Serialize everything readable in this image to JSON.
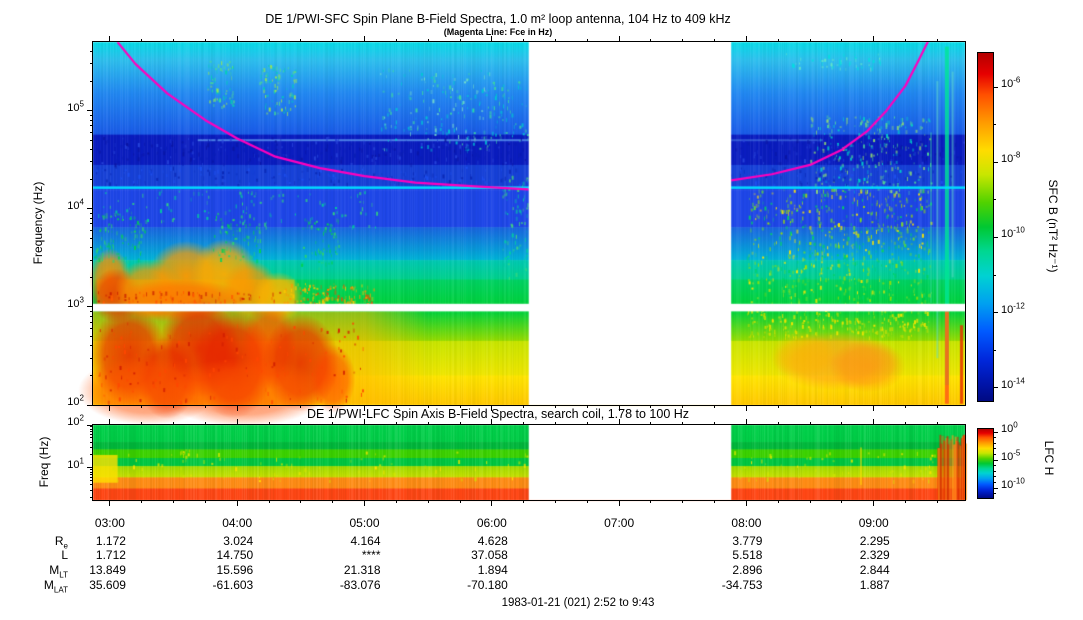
{
  "ui": {
    "title": "DE 1/PWI-SFC  Spin Plane B-Field Spectra, 1.0 m² loop antenna, 104 Hz to 409 kHz",
    "subtitle": "(Magenta Line: Fce in Hz)",
    "lfc_title": "DE 1/PWI-LFC  Spin Axis B-Field Spectra, search coil, 1.78 to 100 Hz",
    "caption": "1983-01-21 (021) 2:52 to 9:43",
    "sfc_ylabel": "Frequency (Hz)",
    "lfc_ylabel": "Freq (Hz)",
    "sfc_cb_label": "SFC B (nT² Hz⁻¹)",
    "lfc_cb_label": "LFC H"
  },
  "ephemeris": {
    "row_labels": [
      [
        "R",
        "e"
      ],
      [
        "L",
        ""
      ],
      [
        "M",
        "LT"
      ],
      [
        "M",
        "LAT"
      ]
    ],
    "hours": [
      "03:00",
      "04:00",
      "05:00",
      "06:00",
      "07:00",
      "08:00",
      "09:00"
    ],
    "rows": [
      [
        "1.172",
        "3.024",
        "4.164",
        "4.628",
        "",
        "3.779",
        "2.295"
      ],
      [
        "1.712",
        "14.750",
        "****",
        "37.058",
        "",
        "5.518",
        "2.329"
      ],
      [
        "13.849",
        "15.596",
        "21.318",
        "1.894",
        "",
        "2.896",
        "2.844"
      ],
      [
        "35.609",
        "-61.603",
        "-83.076",
        "-70.180",
        "",
        "-34.753",
        "1.887"
      ]
    ]
  },
  "chart_data": {
    "type": "heatmap",
    "x_axis": {
      "start_h": 2.867,
      "end_h": 9.717,
      "gap_h": [
        6.29,
        7.88
      ],
      "minor_step_h": 0.25
    },
    "rainbow": [
      [
        0,
        "#b40000"
      ],
      [
        0.06,
        "#e60000"
      ],
      [
        0.12,
        "#ff5000"
      ],
      [
        0.2,
        "#ff9b00"
      ],
      [
        0.28,
        "#ffdc00"
      ],
      [
        0.35,
        "#c8e600"
      ],
      [
        0.43,
        "#50d200"
      ],
      [
        0.5,
        "#00c832"
      ],
      [
        0.57,
        "#00d791"
      ],
      [
        0.64,
        "#00d2d2"
      ],
      [
        0.72,
        "#00a0f0"
      ],
      [
        0.8,
        "#005aff"
      ],
      [
        0.88,
        "#0028dc"
      ],
      [
        0.95,
        "#0014aa"
      ],
      [
        1,
        "#000a82"
      ]
    ],
    "sfc": {
      "ylog_range": [
        2,
        5.7
      ],
      "ytick_exponents": [
        5,
        4,
        3,
        2
      ],
      "colorbar": {
        "tick_exponents": [
          -6,
          -8,
          -10,
          -12,
          -14
        ],
        "minor_exponents": [
          -7,
          -9,
          -11,
          -13
        ]
      },
      "bands": [
        [
          500000,
          330000,
          "#06dce8",
          "#2ec0ee"
        ],
        [
          330000,
          150000,
          "#2ec0ee",
          "#2288f2"
        ],
        [
          150000,
          57000,
          "#2288f2",
          "#1a5ae8"
        ],
        [
          57000,
          28000,
          "#0a1cc0",
          "#0a1cc0"
        ],
        [
          28000,
          17000,
          "#1640d8",
          "#1640d8"
        ],
        [
          17000,
          15500,
          "#1e46e8",
          "#1e46e8"
        ],
        [
          15500,
          6500,
          "#1e46e8",
          "#1e46e8"
        ],
        [
          6500,
          3000,
          "#1a64e0",
          "#00b4d8"
        ],
        [
          3000,
          1900,
          "#00c8b4",
          "#00d28c"
        ],
        [
          1900,
          1060,
          "#00d264",
          "#00d23c"
        ],
        [
          1060,
          900,
          "#00d23c",
          "#00d23c"
        ],
        [
          900,
          450,
          "#00d23c",
          "#96dc00"
        ],
        [
          450,
          200,
          "#c8e600",
          "#f0e600"
        ],
        [
          200,
          100,
          "#ffe600",
          "#ffc800"
        ]
      ],
      "white_band_hz": [
        900,
        1075
      ],
      "cyan_line": {
        "f": 16500,
        "color": "#00dcff"
      },
      "pale_lines": [
        {
          "f": 50000,
          "t": [
            3.69,
            6.29
          ],
          "color": "#5a96f0",
          "alpha": 0.8
        },
        {
          "f": 50000,
          "t": [
            7.88,
            8.6
          ],
          "color": "#5a96f0",
          "alpha": 0.45
        }
      ],
      "washes": [
        [
          2.9,
          4.45,
          1050,
          1900,
          "#ffc800",
          0.5,
          null
        ],
        [
          2.867,
          5.5,
          103,
          900,
          "#ffb400",
          0.55,
          5.0
        ]
      ],
      "blobs": [
        [
          3.0,
          1900,
          0.16,
          0.32,
          "#ff8c00",
          0.95
        ],
        [
          3.05,
          1300,
          0.2,
          0.28,
          "#e63c00",
          0.8
        ],
        [
          3.3,
          1500,
          0.26,
          0.3,
          "#ff9600",
          0.9
        ],
        [
          3.6,
          2050,
          0.3,
          0.36,
          "#ff9600",
          0.95
        ],
        [
          3.9,
          2150,
          0.26,
          0.36,
          "#ffaa00",
          0.95
        ],
        [
          4.1,
          1500,
          0.22,
          0.3,
          "#ff9600",
          0.9
        ],
        [
          4.32,
          1250,
          0.2,
          0.26,
          "#ffb400",
          0.85
        ],
        [
          3.55,
          1150,
          0.55,
          0.22,
          "#ff7800",
          0.9
        ],
        [
          3.15,
          320,
          0.3,
          0.5,
          "#e62800",
          0.85
        ],
        [
          3.45,
          190,
          0.24,
          0.42,
          "#e62800",
          0.8
        ],
        [
          3.7,
          380,
          0.32,
          0.5,
          "#e61e00",
          0.85
        ],
        [
          3.97,
          260,
          0.32,
          0.55,
          "#e61e00",
          0.9
        ],
        [
          4.25,
          400,
          0.22,
          0.45,
          "#ff3c00",
          0.7
        ],
        [
          4.5,
          270,
          0.3,
          0.5,
          "#e62800",
          0.85
        ],
        [
          4.75,
          185,
          0.18,
          0.35,
          "#ff3c00",
          0.65
        ],
        [
          3.3,
          140,
          0.55,
          0.35,
          "#ff5000",
          0.65
        ],
        [
          4.05,
          135,
          0.65,
          0.35,
          "#ff5000",
          0.65
        ],
        [
          8.7,
          280,
          0.5,
          0.3,
          "#ff9b1e",
          0.7
        ],
        [
          8.45,
          320,
          0.26,
          0.24,
          "#ffb400",
          0.55
        ],
        [
          8.95,
          250,
          0.3,
          0.27,
          "#ff8c14",
          0.6
        ]
      ],
      "speckles": [
        [
          3.76,
          3.97,
          110000,
          330000,
          70,
          [
            "#00d2b4",
            "#50e08c",
            "#9be650"
          ]
        ],
        [
          4.17,
          4.46,
          95000,
          300000,
          80,
          [
            "#00d2b4",
            "#50e08c",
            "#9be650"
          ]
        ],
        [
          5.12,
          5.98,
          40000,
          280000,
          170,
          [
            "#00c8d2",
            "#3cd8a0",
            "#78e0c8"
          ]
        ],
        [
          5.98,
          6.28,
          50000,
          200000,
          60,
          [
            "#00c8d2",
            "#3cd8a0"
          ]
        ],
        [
          6.08,
          6.28,
          2000,
          22000,
          70,
          [
            "#00d2a0",
            "#46dc78"
          ]
        ],
        [
          2.9,
          5.15,
          6500,
          15500,
          110,
          [
            "#00d29b",
            "#32dc78"
          ]
        ],
        [
          2.87,
          3.28,
          3000,
          9500,
          90,
          [
            "#2cd26e",
            "#00d250"
          ]
        ],
        [
          3.8,
          4.18,
          3000,
          9500,
          70,
          [
            "#2cd26e",
            "#00d250"
          ]
        ],
        [
          4.5,
          4.8,
          2500,
          8000,
          60,
          [
            "#2cd26e",
            "#00d250"
          ]
        ],
        [
          8.0,
          9.45,
          1100,
          16000,
          650,
          [
            "#64dc32",
            "#a0e000",
            "#ffe600",
            "#00d264"
          ]
        ],
        [
          8.5,
          9.45,
          15000,
          90000,
          260,
          [
            "#00d2c8",
            "#50dc96",
            "#96e06e"
          ]
        ],
        [
          8.3,
          9.05,
          270000,
          390000,
          50,
          [
            "#00e0e0",
            "#64e6c8"
          ]
        ],
        [
          4.35,
          5.08,
          1050,
          1750,
          140,
          [
            "#ff9600",
            "#ffc800",
            "#e65000"
          ]
        ],
        [
          2.9,
          4.35,
          1080,
          1450,
          90,
          [
            "#c81e00",
            "#ff5a00"
          ]
        ],
        [
          2.9,
          5.0,
          110,
          700,
          150,
          [
            "#d21e00",
            "#ff4600"
          ]
        ],
        [
          8.0,
          9.45,
          500,
          950,
          220,
          [
            "#c8dc00",
            "#ffe600"
          ]
        ],
        [
          2.87,
          9.71,
          29000,
          55000,
          500,
          [
            "#0a14a0",
            "#2846dc",
            "#0a1eb4"
          ]
        ],
        [
          2.87,
          9.71,
          17500,
          27000,
          300,
          [
            "#1e50f0",
            "#0a28b4"
          ]
        ]
      ],
      "vlines": [
        [
          9.575,
          4,
          160,
          450000,
          "#00e696",
          0.8
        ],
        [
          9.5,
          2,
          300,
          200000,
          "#64dcc8",
          0.5
        ],
        [
          9.62,
          2,
          2000,
          250000,
          "#64dcc8",
          0.5
        ],
        [
          9.45,
          2,
          1100,
          60000,
          "#3cd8a0",
          0.4
        ],
        [
          9.575,
          4,
          103,
          900,
          "#ff6414",
          0.9
        ],
        [
          9.69,
          3,
          103,
          650,
          "#e63200",
          0.85
        ]
      ],
      "fce_color": "#ff00be",
      "fce_left": [
        [
          3.06,
          500000
        ],
        [
          3.2,
          300000
        ],
        [
          3.45,
          150000
        ],
        [
          3.75,
          80000
        ],
        [
          4.0,
          52000
        ],
        [
          4.3,
          34000
        ],
        [
          4.65,
          26000
        ],
        [
          5.0,
          21500
        ],
        [
          5.4,
          18500
        ],
        [
          5.9,
          16800
        ],
        [
          6.29,
          15800
        ]
      ],
      "fce_right": [
        [
          7.88,
          19500
        ],
        [
          8.2,
          22500
        ],
        [
          8.5,
          28000
        ],
        [
          8.75,
          40000
        ],
        [
          8.95,
          62000
        ],
        [
          9.1,
          100000
        ],
        [
          9.25,
          180000
        ],
        [
          9.35,
          320000
        ],
        [
          9.43,
          520000
        ]
      ]
    },
    "lfc": {
      "ylog_range": [
        0.25,
        2
      ],
      "ytick_exponents": [
        2,
        1
      ],
      "colorbar": {
        "tick_exponents": [
          0,
          -5,
          -10
        ],
        "minor_exponents": [
          -1,
          -2,
          -3,
          -4,
          -6,
          -7,
          -8,
          -9,
          -11
        ]
      },
      "bands": [
        [
          100,
          40,
          "#00d24b",
          "#00cd46"
        ],
        [
          40,
          27,
          "#00b93c",
          "#00b93c"
        ],
        [
          27,
          17,
          "#3cd200",
          "#3cd200"
        ],
        [
          17,
          11,
          "#00c841",
          "#00c841"
        ],
        [
          11,
          6,
          "#a0dc00",
          "#c8e100"
        ],
        [
          6,
          3.3,
          "#ff8c14",
          "#ff8c14"
        ],
        [
          3.3,
          1.78,
          "#ff4614",
          "#ff4614"
        ]
      ],
      "washes": [
        [
          2.867,
          3.06,
          4.5,
          20,
          "#ffe100",
          0.8,
          null
        ]
      ],
      "speckles": [
        [
          2.9,
          6.28,
          5,
          25,
          70,
          [
            "#ffe600",
            "#d2e600"
          ]
        ],
        [
          7.9,
          9.5,
          5,
          25,
          55,
          [
            "#ffe600",
            "#d2e600"
          ]
        ],
        [
          3.55,
          3.62,
          10,
          28,
          12,
          [
            "#ffe600"
          ]
        ]
      ],
      "vlines": [
        [
          8.9,
          2,
          4,
          30,
          "#ffdc00",
          0.5
        ]
      ],
      "red_zone": {
        "t": [
          9.5,
          9.717
        ],
        "f_top_range": [
          25,
          60
        ],
        "colors": [
          "#e63c00",
          "#ff6e14",
          "#ff9b1e",
          "#d22800"
        ]
      }
    }
  }
}
